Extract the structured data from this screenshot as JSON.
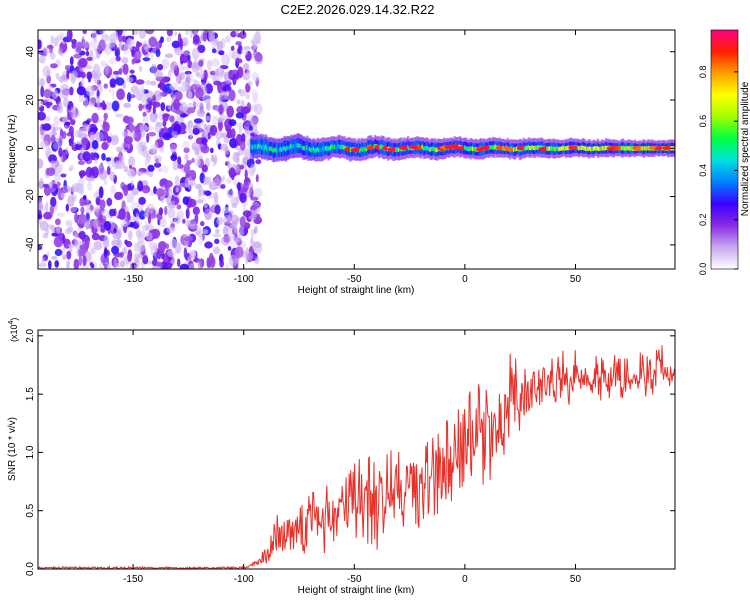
{
  "title": "C2E2.2026.029.14.32.R22",
  "chart_data": [
    {
      "type": "heatmap",
      "name": "spectrum",
      "xlabel": "Height of straight line (km)",
      "ylabel": "Frequency (Hz)",
      "xlim": [
        -193,
        95
      ],
      "ylim": [
        -50,
        49
      ],
      "xticks": [
        -150,
        -100,
        -50,
        0,
        50
      ],
      "yticks": [
        -40,
        -20,
        0,
        20,
        40
      ],
      "noise_region_km": [
        -193,
        -97
      ],
      "signal_band_start_km": -97,
      "signal_center_hz": 0,
      "colorbar": {
        "label": "Normalized spectral amplitude",
        "range": [
          0.0,
          0.97
        ],
        "ticks": [
          0.0,
          0.2,
          0.4,
          0.6,
          0.8
        ],
        "colors": [
          "#ffffff",
          "#c8a8f0",
          "#8a2be2",
          "#3a00ff",
          "#0080ff",
          "#00e0e0",
          "#00ff40",
          "#a0ff00",
          "#ffff00",
          "#ffa000",
          "#ff2000",
          "#ff0080"
        ]
      }
    },
    {
      "type": "line",
      "name": "snr",
      "xlabel": "Height of straight line (km)",
      "ylabel": "SNR (10 * v/v)",
      "yscale_note": "(x10",
      "yscale_exp": "4",
      "xlim": [
        -193,
        95
      ],
      "ylim": [
        0.0,
        2.05
      ],
      "xticks": [
        -150,
        -100,
        -50,
        0,
        50
      ],
      "yticks": [
        0.0,
        0.5,
        1.0,
        1.5,
        2.0
      ],
      "ytick_labels": [
        "0.0",
        "0.5",
        "1.0",
        "1.5",
        "2.0"
      ],
      "line_color": "#e8302a",
      "series_profile": [
        {
          "x": -193,
          "y": 0.01
        },
        {
          "x": -100,
          "y": 0.01
        },
        {
          "x": -93,
          "y": 0.05
        },
        {
          "x": -85,
          "y": 0.28
        },
        {
          "x": -75,
          "y": 0.4
        },
        {
          "x": -60,
          "y": 0.45
        },
        {
          "x": -50,
          "y": 0.6
        },
        {
          "x": -35,
          "y": 0.62
        },
        {
          "x": -20,
          "y": 0.72
        },
        {
          "x": -10,
          "y": 0.85
        },
        {
          "x": 0,
          "y": 1.05
        },
        {
          "x": 10,
          "y": 1.2
        },
        {
          "x": 20,
          "y": 1.35
        },
        {
          "x": 30,
          "y": 1.55
        },
        {
          "x": 40,
          "y": 1.62
        },
        {
          "x": 55,
          "y": 1.65
        },
        {
          "x": 70,
          "y": 1.65
        },
        {
          "x": 80,
          "y": 1.7
        },
        {
          "x": 95,
          "y": 1.7
        }
      ]
    }
  ]
}
